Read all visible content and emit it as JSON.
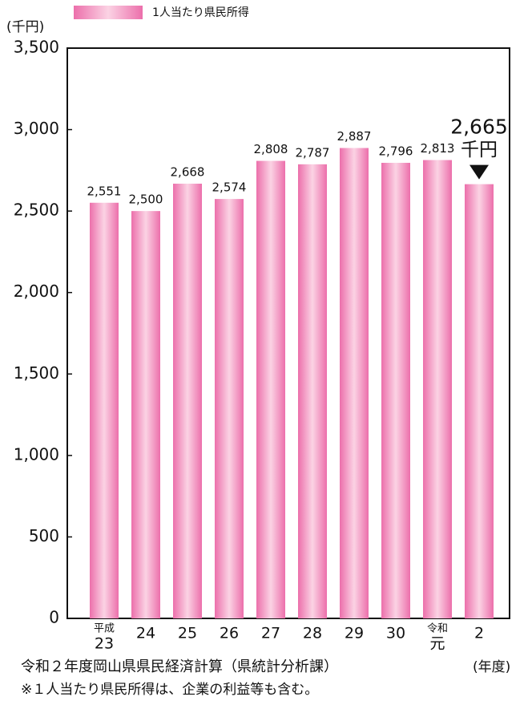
{
  "chart_data": {
    "type": "bar",
    "y_label": "(千円)",
    "x_label": "(年度)",
    "categories": [
      {
        "era": "平成",
        "label": "23"
      },
      {
        "label": "24"
      },
      {
        "label": "25"
      },
      {
        "label": "26"
      },
      {
        "label": "27"
      },
      {
        "label": "28"
      },
      {
        "label": "29"
      },
      {
        "label": "30"
      },
      {
        "era": "令和",
        "label": "元"
      },
      {
        "label": "2"
      }
    ],
    "series": [
      {
        "name": "1人当たり県民所得",
        "color": "#ec6fab",
        "values": [
          2551,
          2500,
          2668,
          2574,
          2808,
          2787,
          2887,
          2796,
          2813,
          2665
        ],
        "value_labels": [
          "2,551",
          "2,500",
          "2,668",
          "2,574",
          "2,808",
          "2,787",
          "2,887",
          "2,796",
          "2,813",
          "2,665"
        ]
      }
    ],
    "highlight_unit": "千円",
    "ylim": [
      0,
      3500
    ],
    "yticks": [
      0,
      500,
      {
        "value": 1000,
        "label": "1,000"
      },
      {
        "value": 1500,
        "label": "1,500"
      },
      {
        "value": 2000,
        "label": "2,000"
      },
      {
        "value": 2500,
        "label": "2,500"
      },
      {
        "value": 3000,
        "label": "3,000"
      },
      {
        "value": 3500,
        "label": "3,500"
      }
    ],
    "grid": false,
    "source": "令和２年度岡山県県民経済計算（県統計分析課）",
    "note": "※１人当たり県民所得は、企業の利益等も含む。"
  }
}
